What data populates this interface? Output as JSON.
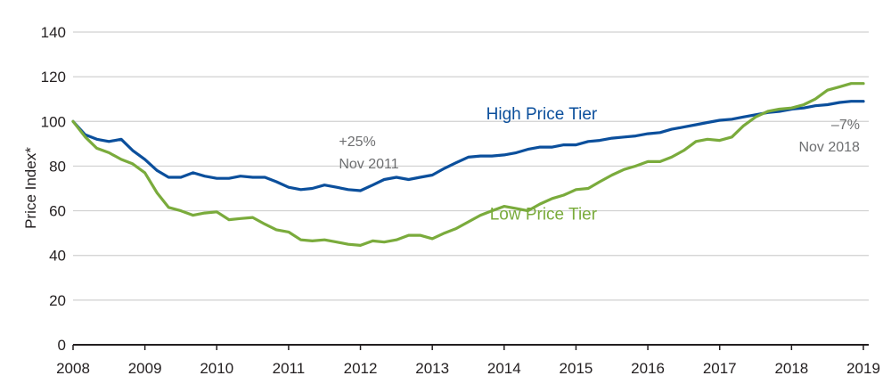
{
  "chart_data": {
    "type": "line",
    "title": "",
    "xlabel": "",
    "ylabel": "Price Index*",
    "xlim": [
      2008,
      2019
    ],
    "ylim": [
      0,
      140
    ],
    "grid": true,
    "x_ticks": [
      "2008",
      "2009",
      "2010",
      "2011",
      "2012",
      "2013",
      "2014",
      "2015",
      "2016",
      "2017",
      "2018",
      "2019"
    ],
    "y_ticks": [
      "0",
      "20",
      "40",
      "60",
      "80",
      "100",
      "120",
      "140"
    ],
    "x": [
      2008.0,
      2008.17,
      2008.33,
      2008.5,
      2008.67,
      2008.83,
      2009.0,
      2009.17,
      2009.33,
      2009.5,
      2009.67,
      2009.83,
      2010.0,
      2010.17,
      2010.33,
      2010.5,
      2010.67,
      2010.83,
      2011.0,
      2011.17,
      2011.33,
      2011.5,
      2011.67,
      2011.83,
      2012.0,
      2012.17,
      2012.33,
      2012.5,
      2012.67,
      2012.83,
      2013.0,
      2013.17,
      2013.33,
      2013.5,
      2013.67,
      2013.83,
      2014.0,
      2014.17,
      2014.33,
      2014.5,
      2014.67,
      2014.83,
      2015.0,
      2015.17,
      2015.33,
      2015.5,
      2015.67,
      2015.83,
      2016.0,
      2016.17,
      2016.33,
      2016.5,
      2016.67,
      2016.83,
      2017.0,
      2017.17,
      2017.33,
      2017.5,
      2017.67,
      2017.83,
      2018.0,
      2018.17,
      2018.33,
      2018.5,
      2018.67,
      2018.83,
      2019.0
    ],
    "series": [
      {
        "name": "High Price Tier",
        "color": "#0b4f9c",
        "values": [
          100,
          94,
          92,
          91,
          92,
          87,
          83,
          78,
          75,
          75,
          77,
          75.5,
          74.5,
          74.5,
          75.5,
          75,
          75,
          73,
          70.5,
          69.5,
          70,
          71.5,
          70.5,
          69.5,
          69,
          71.5,
          74,
          75,
          74,
          75,
          76,
          79,
          81.5,
          84,
          84.5,
          84.5,
          85,
          86,
          87.5,
          88.5,
          88.5,
          89.5,
          89.5,
          91,
          91.5,
          92.5,
          93,
          93.5,
          94.5,
          95,
          96.5,
          97.5,
          98.5,
          99.5,
          100.5,
          101,
          102,
          103,
          104,
          104.5,
          105.5,
          106,
          107,
          107.5,
          108.5,
          109,
          109
        ]
      },
      {
        "name": "Low Price Tier",
        "color": "#7aab3c",
        "values": [
          100,
          93,
          88,
          86,
          83,
          81,
          77,
          68,
          61.5,
          60,
          58,
          59,
          59.5,
          56,
          56.5,
          57,
          54,
          51.5,
          50.5,
          47,
          46.5,
          47,
          46,
          45,
          44.5,
          46.5,
          46,
          47,
          49,
          49,
          47.5,
          50,
          52,
          55,
          58,
          60,
          62,
          61,
          60,
          63,
          65.5,
          67,
          69.5,
          70,
          73,
          76,
          78.5,
          80,
          82,
          82,
          84,
          87,
          91,
          92,
          91.5,
          93,
          98,
          102,
          104.5,
          105.5,
          106,
          107.5,
          110,
          114,
          115.5,
          117,
          117
        ]
      }
    ],
    "series_labels": [
      {
        "text": "High Price Tier",
        "color": "#0b4f9c",
        "anchor_x": 2013.75,
        "anchor_y": 101
      },
      {
        "text": "Low Price Tier",
        "color": "#7aab3c",
        "anchor_x": 2013.8,
        "anchor_y": 56
      }
    ],
    "annotations": [
      {
        "lines": [
          "+25%",
          "Nov 2011"
        ],
        "anchor_x": 2011.7,
        "anchor_y": 89,
        "align": "start"
      },
      {
        "lines": [
          "–7%",
          "Nov 2018"
        ],
        "anchor_x": 2018.95,
        "anchor_y": 96.5,
        "align": "end"
      }
    ],
    "annotation_color": "#6d6e70",
    "legend": "inline-labels"
  }
}
